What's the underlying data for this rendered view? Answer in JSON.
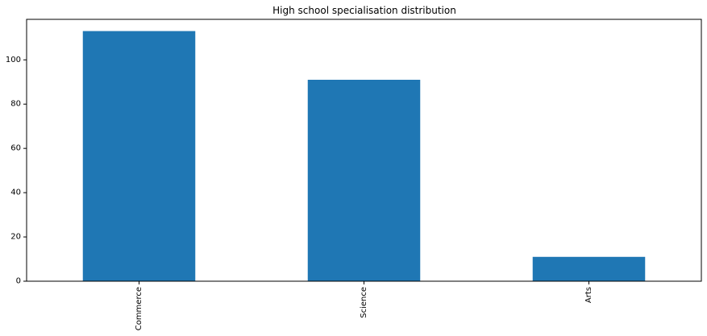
{
  "chart_data": {
    "type": "bar",
    "title": "High school specialisation distribution",
    "xlabel": "",
    "ylabel": "",
    "categories": [
      "Commerce",
      "Science",
      "Arts"
    ],
    "values": [
      113,
      91,
      11
    ],
    "ylim": [
      0,
      118.3
    ],
    "yticks": [
      0,
      20,
      40,
      60,
      80,
      100
    ],
    "x_tick_rotation": "vertical",
    "grid": false,
    "legend": "none",
    "bar_color": "#1f77b4"
  }
}
